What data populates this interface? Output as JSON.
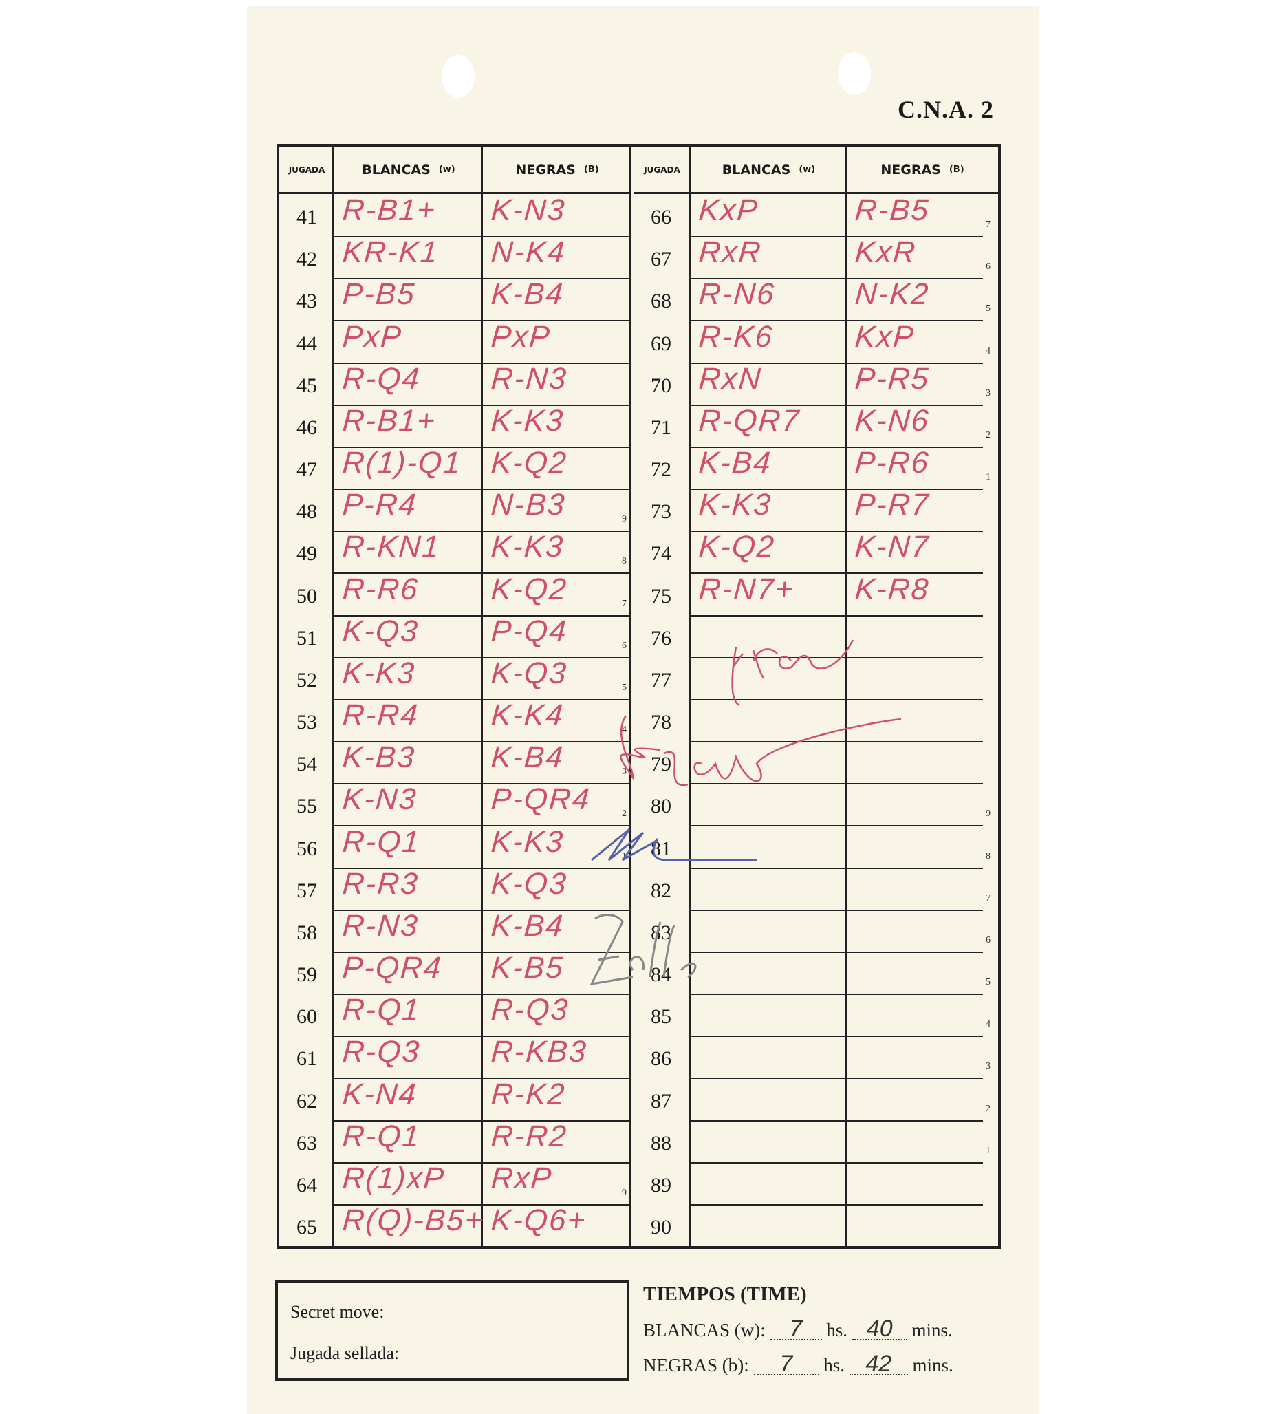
{
  "form_code": "C.N.A. 2",
  "headers": {
    "move": "JUGADA",
    "white": "BLANCAS",
    "white_sub": "(w)",
    "black": "NEGRAS",
    "black_sub": "(B)"
  },
  "ink_color": "#d0506a",
  "left_moves": [
    {
      "n": "41",
      "w": "R-B1+",
      "b": "K-N3"
    },
    {
      "n": "42",
      "w": "KR-K1",
      "b": "N-K4"
    },
    {
      "n": "43",
      "w": "P-B5",
      "b": "K-B4"
    },
    {
      "n": "44",
      "w": "PxP",
      "b": "PxP"
    },
    {
      "n": "45",
      "w": "R-Q4",
      "b": "R-N3"
    },
    {
      "n": "46",
      "w": "R-B1+",
      "b": "K-K3"
    },
    {
      "n": "47",
      "w": "R(1)-Q1",
      "b": "K-Q2"
    },
    {
      "n": "48",
      "w": "P-R4",
      "b": "N-B3",
      "m": "9"
    },
    {
      "n": "49",
      "w": "R-KN1",
      "b": "K-K3",
      "m": "8"
    },
    {
      "n": "50",
      "w": "R-R6",
      "b": "K-Q2",
      "m": "7"
    },
    {
      "n": "51",
      "w": "K-Q3",
      "b": "P-Q4",
      "m": "6"
    },
    {
      "n": "52",
      "w": "K-K3",
      "b": "K-Q3",
      "m": "5"
    },
    {
      "n": "53",
      "w": "R-R4",
      "b": "K-K4",
      "m": "4"
    },
    {
      "n": "54",
      "w": "K-B3",
      "b": "K-B4",
      "m": "3"
    },
    {
      "n": "55",
      "w": "K-N3",
      "b": "P-QR4",
      "m": "2"
    },
    {
      "n": "56",
      "w": "R-Q1",
      "b": "K-K3",
      "m": "1"
    },
    {
      "n": "57",
      "w": "R-R3",
      "b": "K-Q3"
    },
    {
      "n": "58",
      "w": "R-N3",
      "b": "K-B4"
    },
    {
      "n": "59",
      "w": "P-QR4",
      "b": "K-B5"
    },
    {
      "n": "60",
      "w": "R-Q1",
      "b": "R-Q3"
    },
    {
      "n": "61",
      "w": "R-Q3",
      "b": "R-KB3"
    },
    {
      "n": "62",
      "w": "K-N4",
      "b": "R-K2"
    },
    {
      "n": "63",
      "w": "R-Q1",
      "b": "R-R2"
    },
    {
      "n": "64",
      "w": "R(1)xP",
      "b": "RxP",
      "m": "9"
    },
    {
      "n": "65",
      "w": "R(Q)-B5+",
      "b": "K-Q6+"
    }
  ],
  "right_moves": [
    {
      "n": "66",
      "w": "KxP",
      "b": "R-B5",
      "m": "7"
    },
    {
      "n": "67",
      "w": "RxR",
      "b": "KxR",
      "m": "6"
    },
    {
      "n": "68",
      "w": "R-N6",
      "b": "N-K2",
      "m": "5"
    },
    {
      "n": "69",
      "w": "R-K6",
      "b": "KxP",
      "m": "4"
    },
    {
      "n": "70",
      "w": "RxN",
      "b": "P-R5",
      "m": "3"
    },
    {
      "n": "71",
      "w": "R-QR7",
      "b": "K-N6",
      "m": "2"
    },
    {
      "n": "72",
      "w": "K-B4",
      "b": "P-R6",
      "m": "1"
    },
    {
      "n": "73",
      "w": "K-K3",
      "b": "P-R7"
    },
    {
      "n": "74",
      "w": "K-Q2",
      "b": "K-N7"
    },
    {
      "n": "75",
      "w": "R-N7+",
      "b": "K-R8"
    },
    {
      "n": "76",
      "w": "",
      "b": ""
    },
    {
      "n": "77",
      "w": "",
      "b": ""
    },
    {
      "n": "78",
      "w": "",
      "b": ""
    },
    {
      "n": "79",
      "w": "",
      "b": ""
    },
    {
      "n": "80",
      "w": "",
      "b": "",
      "m": "9"
    },
    {
      "n": "81",
      "w": "",
      "b": "",
      "m": "8"
    },
    {
      "n": "82",
      "w": "",
      "b": "",
      "m": "7"
    },
    {
      "n": "83",
      "w": "",
      "b": "",
      "m": "6"
    },
    {
      "n": "84",
      "w": "",
      "b": "",
      "m": "5"
    },
    {
      "n": "85",
      "w": "",
      "b": "",
      "m": "4"
    },
    {
      "n": "86",
      "w": "",
      "b": "",
      "m": "3"
    },
    {
      "n": "87",
      "w": "",
      "b": "",
      "m": "2"
    },
    {
      "n": "88",
      "w": "",
      "b": "",
      "m": "1"
    },
    {
      "n": "89",
      "w": "",
      "b": ""
    },
    {
      "n": "90",
      "w": "",
      "b": ""
    }
  ],
  "secret_move": {
    "label_en": "Secret move:",
    "label_es": "Jugada sellada:"
  },
  "times": {
    "title": "TIEMPOS (TIME)",
    "white_label": "BLANCAS (w):",
    "white_hours": "7",
    "white_mins": "40",
    "black_label": "NEGRAS (b):",
    "black_hours": "7",
    "black_mins": "42",
    "hours_unit": "hs.",
    "mins_unit": "mins."
  }
}
